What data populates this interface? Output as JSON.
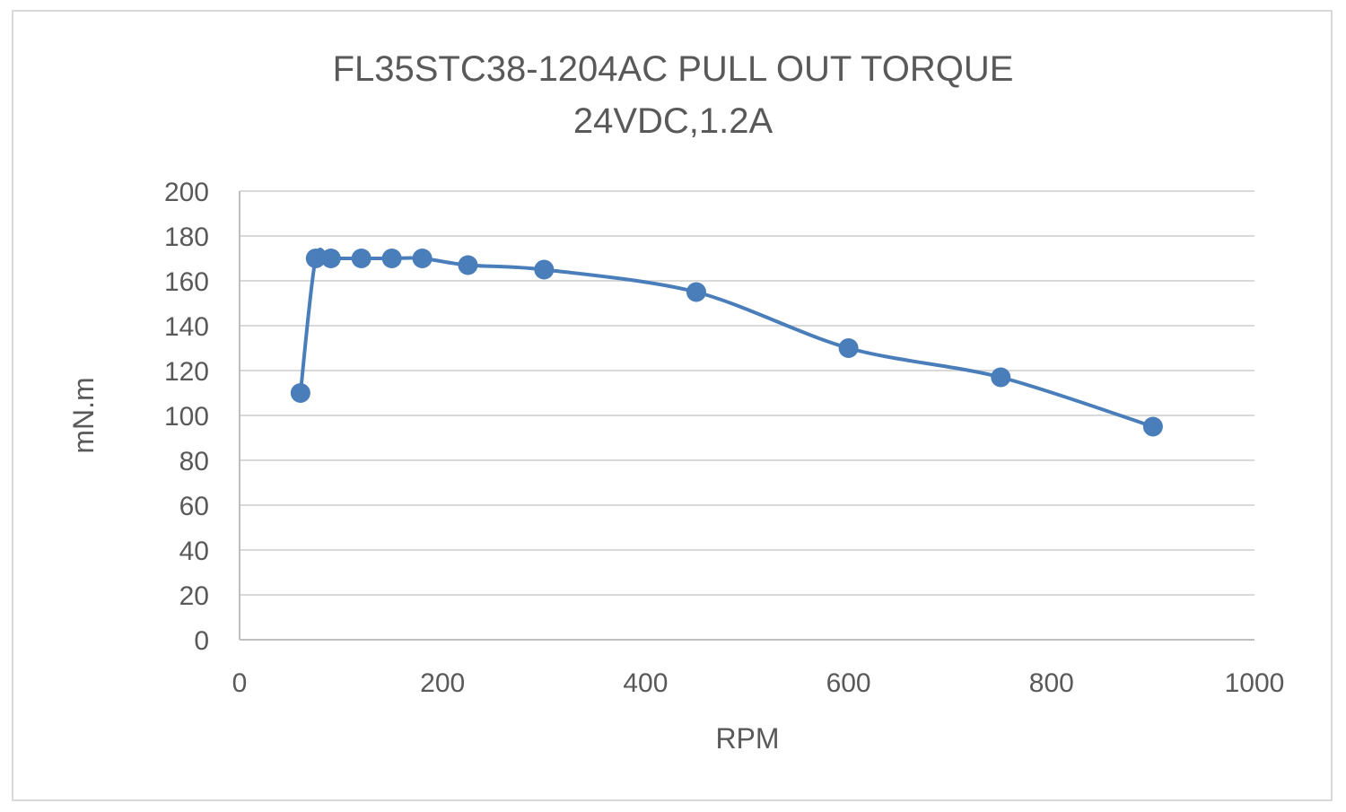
{
  "chart_data": {
    "type": "line",
    "title": "FL35STC38-1204AC PULL OUT TORQUE",
    "subtitle": "24VDC,1.2A",
    "xlabel": "RPM",
    "ylabel": "mN.m",
    "xlim": [
      0,
      1000
    ],
    "ylim": [
      0,
      200
    ],
    "x_ticks": [
      0,
      200,
      400,
      600,
      800,
      1000
    ],
    "y_ticks": [
      0,
      20,
      40,
      60,
      80,
      100,
      120,
      140,
      160,
      180,
      200
    ],
    "grid": true,
    "legend": "none",
    "series": [
      {
        "color": "#4a7ebb",
        "points": [
          {
            "x": 60,
            "y": 110
          },
          {
            "x": 75,
            "y": 170
          },
          {
            "x": 90,
            "y": 170
          },
          {
            "x": 120,
            "y": 170
          },
          {
            "x": 150,
            "y": 170
          },
          {
            "x": 180,
            "y": 170
          },
          {
            "x": 225,
            "y": 167
          },
          {
            "x": 300,
            "y": 165
          },
          {
            "x": 450,
            "y": 155
          },
          {
            "x": 600,
            "y": 130
          },
          {
            "x": 750,
            "y": 117
          },
          {
            "x": 900,
            "y": 95
          }
        ]
      }
    ]
  }
}
